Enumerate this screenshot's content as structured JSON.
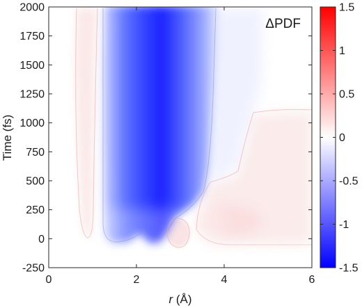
{
  "chart_data": {
    "type": "heatmap",
    "panel_label": "ΔPDF",
    "xlabel_italic": "r",
    "xlabel_unit": " (Å)",
    "ylabel": "Time (fs)",
    "xlim": [
      0,
      6
    ],
    "ylim": [
      -250,
      2000
    ],
    "xticks": [
      "0",
      "2",
      "4",
      "6"
    ],
    "yticks": [
      "-250",
      "0",
      "250",
      "500",
      "750",
      "1000",
      "1250",
      "1500",
      "1750",
      "2000"
    ],
    "colorbar": {
      "range": [
        -1.5,
        1.5
      ],
      "ticks": [
        "-1.5",
        "-1",
        "-0.5",
        "0",
        "0.5",
        "1",
        "1.5"
      ],
      "colormap": [
        "#0000ff",
        "#ffffff",
        "#ff0000"
      ]
    },
    "regions": [
      {
        "sign": "negative",
        "r_range": [
          1.2,
          3.7
        ],
        "t_range": [
          0,
          2000
        ],
        "peak_r": 2.3,
        "peak_value": -1.4
      },
      {
        "sign": "negative",
        "r_range": [
          3.7,
          4.6
        ],
        "t_range": [
          500,
          2000
        ],
        "peak_value": -0.1
      },
      {
        "sign": "positive",
        "r_range": [
          0.6,
          1.0
        ],
        "t_range": [
          30,
          2000
        ],
        "peak_value": 0.1
      },
      {
        "sign": "positive",
        "r_range": [
          2.7,
          3.2
        ],
        "t_range": [
          -60,
          150
        ],
        "peak_value": 0.15
      },
      {
        "sign": "positive",
        "r_range": [
          3.4,
          6.0
        ],
        "t_range": [
          0,
          1100
        ],
        "peak_value": 0.12
      }
    ]
  }
}
